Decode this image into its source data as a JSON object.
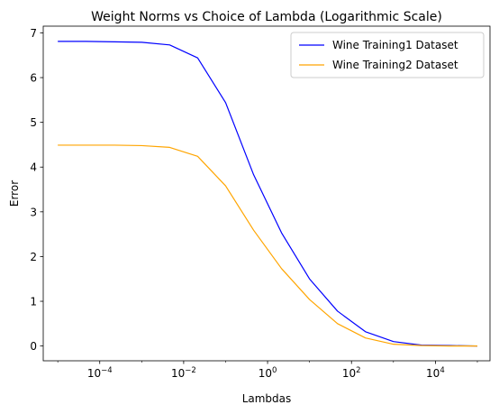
{
  "chart_data": {
    "type": "line",
    "title": "Weight Norms vs Choice of Lambda (Logarithmic Scale)",
    "xlabel": "Lambdas",
    "ylabel": "Error",
    "xscale": "log",
    "xlim": [
      4.5e-06,
      200000
    ],
    "ylim": [
      -0.33,
      7.15
    ],
    "x_ticks": [
      0.0001,
      0.01,
      1,
      100,
      10000
    ],
    "x_tick_labels": [
      {
        "base": "10",
        "exp": "−4"
      },
      {
        "base": "10",
        "exp": "−2"
      },
      {
        "base": "10",
        "exp": "0"
      },
      {
        "base": "10",
        "exp": "2"
      },
      {
        "base": "10",
        "exp": "4"
      }
    ],
    "y_ticks": [
      0,
      1,
      2,
      3,
      4,
      5,
      6,
      7
    ],
    "y_tick_labels": [
      "0",
      "1",
      "2",
      "3",
      "4",
      "5",
      "6",
      "7"
    ],
    "grid": false,
    "legend_position": "top-right",
    "x": [
      1e-05,
      4.642e-05,
      0.0002154,
      0.001,
      0.004642,
      0.02154,
      0.1,
      0.4642,
      2.154,
      10,
      46.42,
      215.4,
      1000,
      4642,
      21540,
      100000
    ],
    "series": [
      {
        "name": "Wine Training1 Dataset",
        "color": "#0000ff",
        "values": [
          6.81,
          6.81,
          6.8,
          6.79,
          6.73,
          6.44,
          5.44,
          3.83,
          2.53,
          1.5,
          0.78,
          0.32,
          0.1,
          0.02,
          0.01,
          0.0
        ]
      },
      {
        "name": "Wine Training2 Dataset",
        "color": "#ffa500",
        "values": [
          4.49,
          4.49,
          4.49,
          4.48,
          4.44,
          4.24,
          3.58,
          2.59,
          1.73,
          1.04,
          0.5,
          0.18,
          0.04,
          0.01,
          0.0,
          0.0
        ]
      }
    ]
  }
}
